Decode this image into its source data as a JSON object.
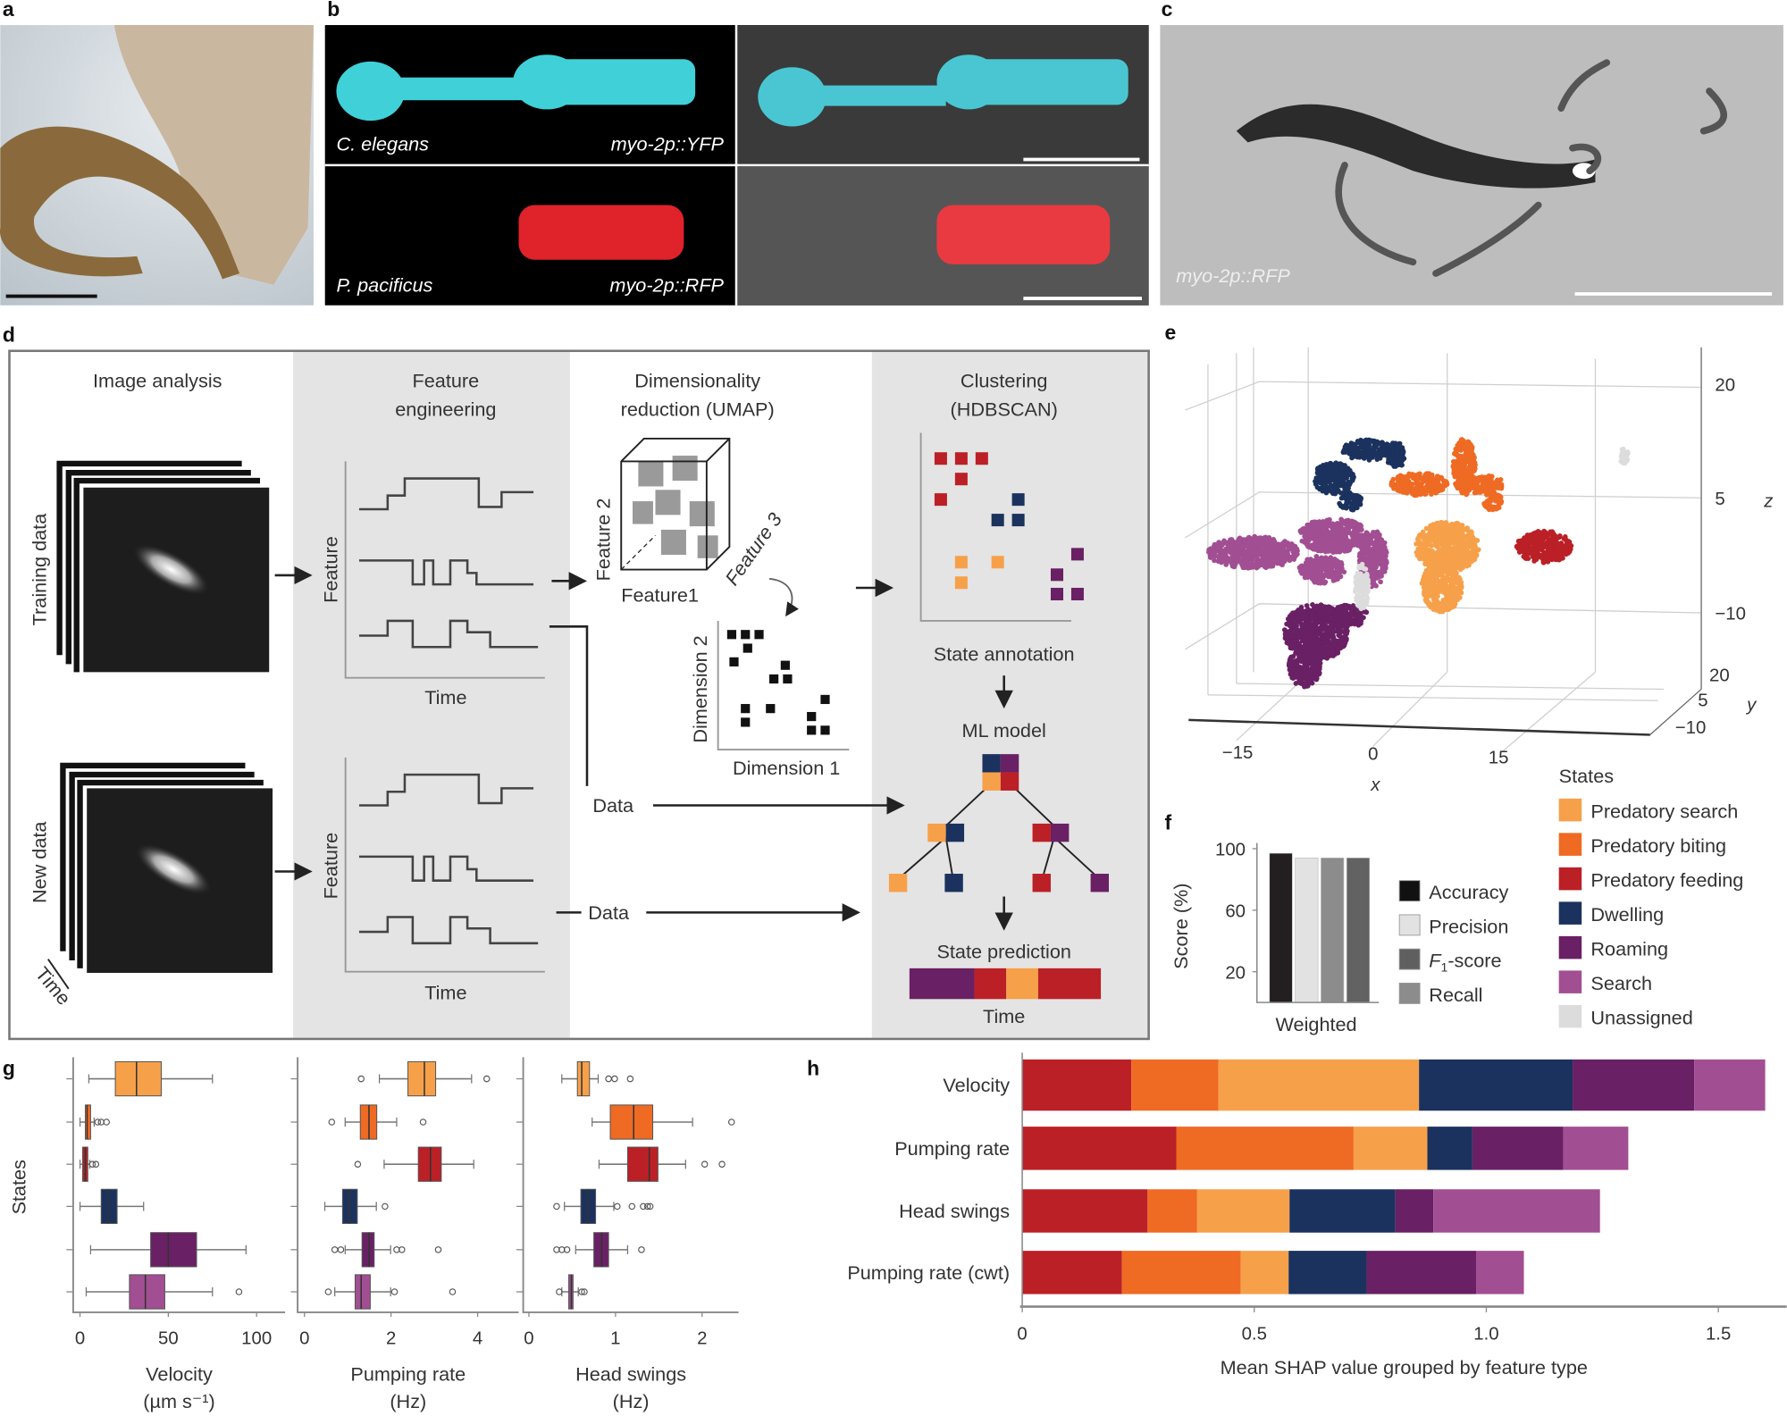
{
  "panel_labels": {
    "a": "a",
    "b": "b",
    "c": "c",
    "d": "d",
    "e": "e",
    "f": "f",
    "g": "g",
    "h": "h"
  },
  "state_colors": {
    "Predatory search": "#F7A04A",
    "Predatory biting": "#EF6A23",
    "Predatory feeding": "#BB2026",
    "Dwelling": "#1B325E",
    "Roaming": "#6A2064",
    "Search": "#A24E93",
    "Unassigned": "#DCDCDC"
  },
  "panel_b": {
    "species_top": "C. elegans",
    "reporter_top": "myo-2p::YFP",
    "species_bottom": "P. pacificus",
    "reporter_bottom": "myo-2p::RFP"
  },
  "panel_c": {
    "reporter": "myo-2p::RFP"
  },
  "panel_d": {
    "col1": "Image analysis",
    "col2_l1": "Feature",
    "col2_l2": "engineering",
    "col3_l1": "Dimensionality",
    "col3_l2": "reduction (UMAP)",
    "col4_l1": "Clustering",
    "col4_l2": "(HDBSCAN)",
    "training_data": "Training data",
    "new_data": "New data",
    "time_stack": "Time",
    "feature_axis": "Feature",
    "time_axis": "Time",
    "feature1": "Feature1",
    "feature2": "Feature 2",
    "feature3": "Feature 3",
    "dimension1": "Dimension 1",
    "dimension2": "Dimension 2",
    "data": "Data",
    "state_annotation": "State annotation",
    "ml_model": "ML model",
    "state_prediction": "State prediction"
  },
  "legend_states": {
    "title": "States",
    "items": [
      "Predatory search",
      "Predatory biting",
      "Predatory feeding",
      "Dwelling",
      "Roaming",
      "Search",
      "Unassigned"
    ]
  },
  "chart_data": [
    {
      "panel": "e",
      "type": "scatter",
      "x_label": "x",
      "y_label": "y",
      "z_label": "z",
      "x_ticks": [
        "−15",
        "0",
        "15"
      ],
      "y_ticks": [
        "20",
        "5",
        "−10"
      ],
      "z_ticks": [
        "20",
        "5",
        "−10"
      ],
      "series": [
        "Predatory search",
        "Predatory biting",
        "Predatory feeding",
        "Dwelling",
        "Roaming",
        "Search",
        "Unassigned"
      ]
    },
    {
      "panel": "f",
      "type": "bar",
      "ylabel": "Score (%)",
      "categories": [
        "Weighted"
      ],
      "y_ticks": [
        "100",
        "60",
        "20"
      ],
      "ylim": [
        0,
        100
      ],
      "series": [
        {
          "name": "Accuracy",
          "value": 97,
          "color": "#231F20"
        },
        {
          "name": "Precision",
          "value": 94,
          "color": "#E2E2E2"
        },
        {
          "name": "Recall",
          "value": 94,
          "color": "#8C8C8C"
        },
        {
          "name": "F1-score",
          "value": 94,
          "color": "#626262"
        }
      ],
      "legend": [
        {
          "name": "Accuracy",
          "color": "#111111"
        },
        {
          "name": "Precision",
          "color": "#E2E2E2"
        },
        {
          "name": "F",
          "sub": "1",
          "rest": "-score",
          "color": "#5F5F5F"
        },
        {
          "name": "Recall",
          "color": "#8C8C8C"
        }
      ]
    },
    {
      "panel": "g",
      "type": "boxplot",
      "ylabel": "States",
      "row_states": [
        "Predatory search",
        "Predatory biting",
        "Predatory feeding",
        "Dwelling",
        "Roaming",
        "Search"
      ],
      "panels": [
        {
          "xlabel_l1": "Velocity",
          "xlabel_l2": "(µm s⁻¹)",
          "xlim": [
            0,
            120
          ],
          "ticks": [
            "0",
            "50",
            "100"
          ],
          "tick_values": [
            0,
            50,
            100
          ],
          "boxes": [
            {
              "wl": 5,
              "q1": 20,
              "med": 32,
              "q3": 46,
              "wh": 75,
              "out": []
            },
            {
              "wl": 0,
              "q1": 3,
              "med": 4,
              "q3": 6,
              "wh": 8,
              "out": [
                10,
                12,
                15
              ]
            },
            {
              "wl": 0,
              "q1": 1.5,
              "med": 3,
              "q3": 4.4,
              "wh": 5.5,
              "out": [
                7,
                9
              ]
            },
            {
              "wl": 0,
              "q1": 12,
              "med": 16,
              "q3": 21,
              "wh": 36,
              "out": []
            },
            {
              "wl": 6,
              "q1": 40,
              "med": 50,
              "q3": 66,
              "wh": 94,
              "out": []
            },
            {
              "wl": 3.5,
              "q1": 28,
              "med": 37,
              "q3": 48,
              "wh": 75,
              "out": [
                90
              ]
            }
          ]
        },
        {
          "xlabel_l1": "Pumping rate",
          "xlabel_l2": "(Hz)",
          "xlim": [
            0,
            4.8
          ],
          "ticks": [
            "0",
            "2",
            "4"
          ],
          "tick_values": [
            0,
            2,
            4
          ],
          "boxes": [
            {
              "wl": 1.73,
              "q1": 2.39,
              "med": 2.77,
              "q3": 3.03,
              "wh": 3.86,
              "out": [
                1.31,
                4.21
              ]
            },
            {
              "wl": 0.94,
              "q1": 1.29,
              "med": 1.49,
              "q3": 1.67,
              "wh": 2.13,
              "out": [
                0.63,
                2.74
              ]
            },
            {
              "wl": 1.84,
              "q1": 2.63,
              "med": 2.91,
              "q3": 3.16,
              "wh": 3.91,
              "out": [
                1.23
              ]
            },
            {
              "wl": 0.47,
              "q1": 0.88,
              "med": 1.04,
              "q3": 1.22,
              "wh": 1.66,
              "out": [
                1.86
              ]
            },
            {
              "wl": 0.94,
              "q1": 1.33,
              "med": 1.49,
              "q3": 1.61,
              "wh": 1.99,
              "out": [
                0.7,
                0.84,
                2.13,
                2.25,
                3.09
              ]
            },
            {
              "wl": 0.7,
              "q1": 1.17,
              "med": 1.31,
              "q3": 1.52,
              "wh": 1.99,
              "out": [
                0.55,
                2.08,
                3.42
              ]
            }
          ]
        },
        {
          "xlabel_l1": "Head swings",
          "xlabel_l2": "(Hz)",
          "xlim": [
            0,
            2.4
          ],
          "ticks": [
            "0",
            "1",
            "2"
          ],
          "tick_values": [
            0,
            1,
            2
          ],
          "boxes": [
            {
              "wl": 0.38,
              "q1": 0.56,
              "med": 0.61,
              "q3": 0.7,
              "wh": 0.8,
              "out": [
                0.92,
                0.99,
                1.17
              ]
            },
            {
              "wl": 0.73,
              "q1": 0.94,
              "med": 1.21,
              "q3": 1.43,
              "wh": 1.89,
              "out": [
                2.34
              ]
            },
            {
              "wl": 0.81,
              "q1": 1.14,
              "med": 1.39,
              "q3": 1.49,
              "wh": 1.81,
              "out": [
                2.03,
                2.23
              ]
            },
            {
              "wl": 0.41,
              "q1": 0.6,
              "med": 0.68,
              "q3": 0.77,
              "wh": 0.98,
              "out": [
                0.32,
                1.02,
                1.19,
                1.32,
                1.37,
                1.4
              ]
            },
            {
              "wl": 0.54,
              "q1": 0.75,
              "med": 0.84,
              "q3": 0.92,
              "wh": 1.14,
              "out": [
                0.32,
                0.38,
                0.44,
                1.3
              ]
            },
            {
              "wl": 0.38,
              "q1": 0.46,
              "med": 0.49,
              "q3": 0.51,
              "wh": 0.57,
              "out": [
                0.35,
                0.61,
                0.64
              ]
            }
          ]
        }
      ]
    },
    {
      "panel": "h",
      "type": "bar",
      "orientation": "horizontal",
      "stacked": true,
      "xlabel": "Mean SHAP value grouped by feature type",
      "xlim": [
        0,
        1.65
      ],
      "x_ticks": [
        "0",
        "0.5",
        "1.0",
        "1.5"
      ],
      "x_tick_values": [
        0,
        0.5,
        1,
        1.5
      ],
      "categories": [
        "Velocity",
        "Pumping rate",
        "Head swings",
        "Pumping rate (cwt)"
      ],
      "series": [
        {
          "state": "Predatory feeding",
          "values": [
            0.235,
            0.332,
            0.27,
            0.215
          ]
        },
        {
          "state": "Predatory biting",
          "values": [
            0.188,
            0.382,
            0.107,
            0.256
          ]
        },
        {
          "state": "Predatory search",
          "values": [
            0.432,
            0.159,
            0.199,
            0.103
          ]
        },
        {
          "state": "Dwelling",
          "values": [
            0.331,
            0.097,
            0.228,
            0.168
          ]
        },
        {
          "state": "Roaming",
          "values": [
            0.262,
            0.196,
            0.082,
            0.236
          ]
        },
        {
          "state": "Search",
          "values": [
            0.153,
            0.14,
            0.359,
            0.103
          ]
        }
      ]
    }
  ]
}
